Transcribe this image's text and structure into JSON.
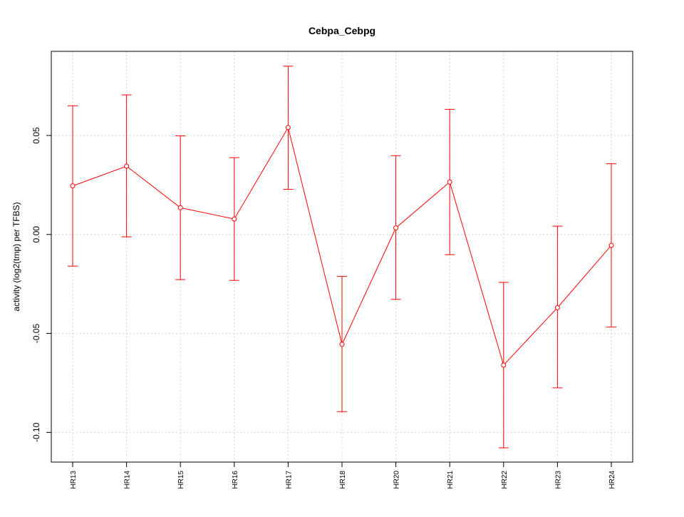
{
  "chart_data": {
    "type": "line",
    "title": "Cebpa_Cebpg",
    "xlabel": "",
    "ylabel": "activity (log2(tmp) per TFBS)",
    "categories": [
      "HR13",
      "HR14",
      "HR15",
      "HR16",
      "HR17",
      "HR18",
      "HR20",
      "HR21",
      "HR22",
      "HR23",
      "HR24"
    ],
    "values": [
      0.0245,
      0.0345,
      0.0135,
      0.0078,
      0.054,
      -0.0555,
      0.0033,
      0.0265,
      -0.066,
      -0.037,
      -0.0055
    ],
    "err_upper": [
      0.065,
      0.0705,
      0.0498,
      0.0388,
      0.085,
      -0.0212,
      0.0398,
      0.0632,
      -0.0242,
      0.0042,
      0.0357
    ],
    "err_lower": [
      -0.016,
      -0.0012,
      -0.0228,
      -0.0232,
      0.0228,
      -0.0895,
      -0.0328,
      -0.0102,
      -0.1078,
      -0.0775,
      -0.0468
    ],
    "yticks": [
      "-0.10",
      "-0.05",
      "0.00",
      "0.05"
    ],
    "ylim": [
      -0.115,
      0.0925
    ],
    "grid": true,
    "colors": {
      "series": "#ff0000",
      "grid": "#d3d3d3",
      "axis": "#000000"
    }
  }
}
